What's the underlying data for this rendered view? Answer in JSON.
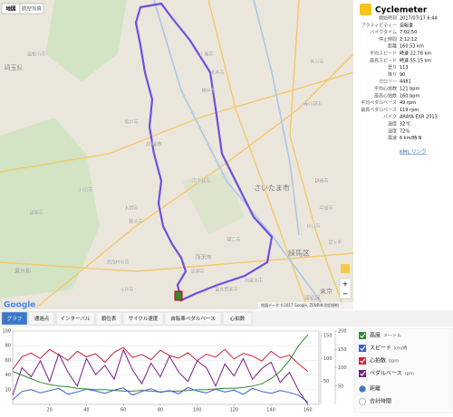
{
  "map": {
    "buttons": [
      "地図",
      "航空写真"
    ],
    "labels": [
      "さいたま市",
      "川越市",
      "所沢市",
      "練馬区",
      "東京",
      "新宿区",
      "埼玉県",
      "東京都",
      "狭山市",
      "入間市",
      "富士見市",
      "上尾市",
      "川口市",
      "朝霞市",
      "東松山市",
      "北本市",
      "桶川市",
      "日高市",
      "飯能市",
      "坂戸市",
      "清瀬市",
      "東久留米市",
      "西東京市",
      "武蔵村山市",
      "立川市",
      "久喜市",
      "春日部市",
      "越谷市",
      "草加市",
      "足立区"
    ],
    "brand": "Google",
    "attribution": "地図データ ©2017 Google, ZENRIN 利用規約",
    "zoom": [
      "+",
      "−"
    ]
  },
  "info": {
    "app": "Cyclemeter",
    "rows": [
      [
        "開始時刻",
        "2017/07/17 6:44"
      ],
      [
        "アクティビティー",
        "自転車"
      ],
      [
        "バイクタイム",
        "7:02:50"
      ],
      [
        "停止時間",
        "2:12:12"
      ],
      [
        "距離",
        "160.53 km"
      ],
      [
        "平均スピード",
        "時速 22.78 km"
      ],
      [
        "最高スピード",
        "時速 55.15 km"
      ],
      [
        "登り",
        "113"
      ],
      [
        "降り",
        "90"
      ],
      [
        "カロリー",
        "4481"
      ],
      [
        "平均心拍数",
        "121 bpm"
      ],
      [
        "最高心拍数",
        "160 bpm"
      ],
      [
        "平均ペダルベース",
        "49 rpm"
      ],
      [
        "最高ペダルベース",
        "119 rpm"
      ],
      [
        "バイク",
        "ARAYA EXR 2013"
      ],
      [
        "温度",
        "32°C"
      ],
      [
        "湿度",
        "72%"
      ],
      [
        "風速",
        "6 km/時 N"
      ]
    ],
    "link": "KML リンク"
  },
  "tabs": [
    "グラフ",
    "通過点",
    "インターバル",
    "順位表",
    "サイクル速度",
    "自転車ペダルベース",
    "心拍数"
  ],
  "chart_data": {
    "type": "line",
    "x": [
      0,
      5,
      10,
      15,
      20,
      25,
      30,
      35,
      40,
      45,
      50,
      55,
      60,
      65,
      70,
      75,
      80,
      85,
      90,
      95,
      100,
      105,
      110,
      115,
      120,
      125,
      130,
      135,
      140,
      145,
      150,
      155,
      160
    ],
    "xlim": [
      0,
      166
    ],
    "xticks": [
      20,
      40,
      60,
      80,
      100,
      120,
      140,
      160
    ],
    "ylim": [
      0,
      100
    ],
    "yticks": [
      20,
      40,
      60,
      80,
      100
    ],
    "y2lim": [
      0,
      160
    ],
    "y2ticks": [
      50,
      100,
      150
    ],
    "y3lim": [
      0,
      200
    ],
    "y3ticks": [
      50,
      100,
      150,
      200
    ],
    "grid": true,
    "series": [
      {
        "name": "高度",
        "unit": "メートル",
        "color": "#2e8b2e",
        "values": [
          45,
          40,
          35,
          30,
          27,
          25,
          24,
          22,
          21,
          20,
          20,
          19,
          18,
          18,
          19,
          18,
          17,
          18,
          18,
          19,
          20,
          20,
          21,
          22,
          22,
          23,
          25,
          28,
          35,
          45,
          60,
          80,
          95
        ]
      },
      {
        "name": "スピード",
        "unit": "km/時",
        "color": "#3b5bdb",
        "axis": "y2",
        "values": [
          10,
          28,
          32,
          25,
          30,
          35,
          22,
          27,
          33,
          29,
          24,
          31,
          36,
          20,
          28,
          34,
          26,
          30,
          23,
          37,
          29,
          25,
          33,
          27,
          31,
          22,
          35,
          28,
          24,
          30,
          26,
          20,
          5
        ]
      },
      {
        "name": "心拍数",
        "unit": "bpm",
        "color": "#d0203a",
        "axis": "y3",
        "values": [
          95,
          130,
          140,
          125,
          150,
          135,
          120,
          145,
          130,
          138,
          115,
          142,
          155,
          128,
          136,
          122,
          148,
          133,
          126,
          141,
          119,
          137,
          129,
          150,
          124,
          139,
          132,
          118,
          145,
          127,
          134,
          110,
          90
        ]
      },
      {
        "name": "ペダルベース",
        "unit": "rpm",
        "color": "#7a1a8c",
        "axis": "y2",
        "values": [
          20,
          80,
          60,
          95,
          50,
          110,
          70,
          40,
          100,
          65,
          85,
          55,
          119,
          75,
          45,
          90,
          60,
          105,
          70,
          50,
          95,
          80,
          40,
          88,
          62,
          100,
          55,
          78,
          92,
          48,
          70,
          30,
          0
        ]
      }
    ],
    "x_options": [
      "距離",
      "合計時間"
    ]
  }
}
